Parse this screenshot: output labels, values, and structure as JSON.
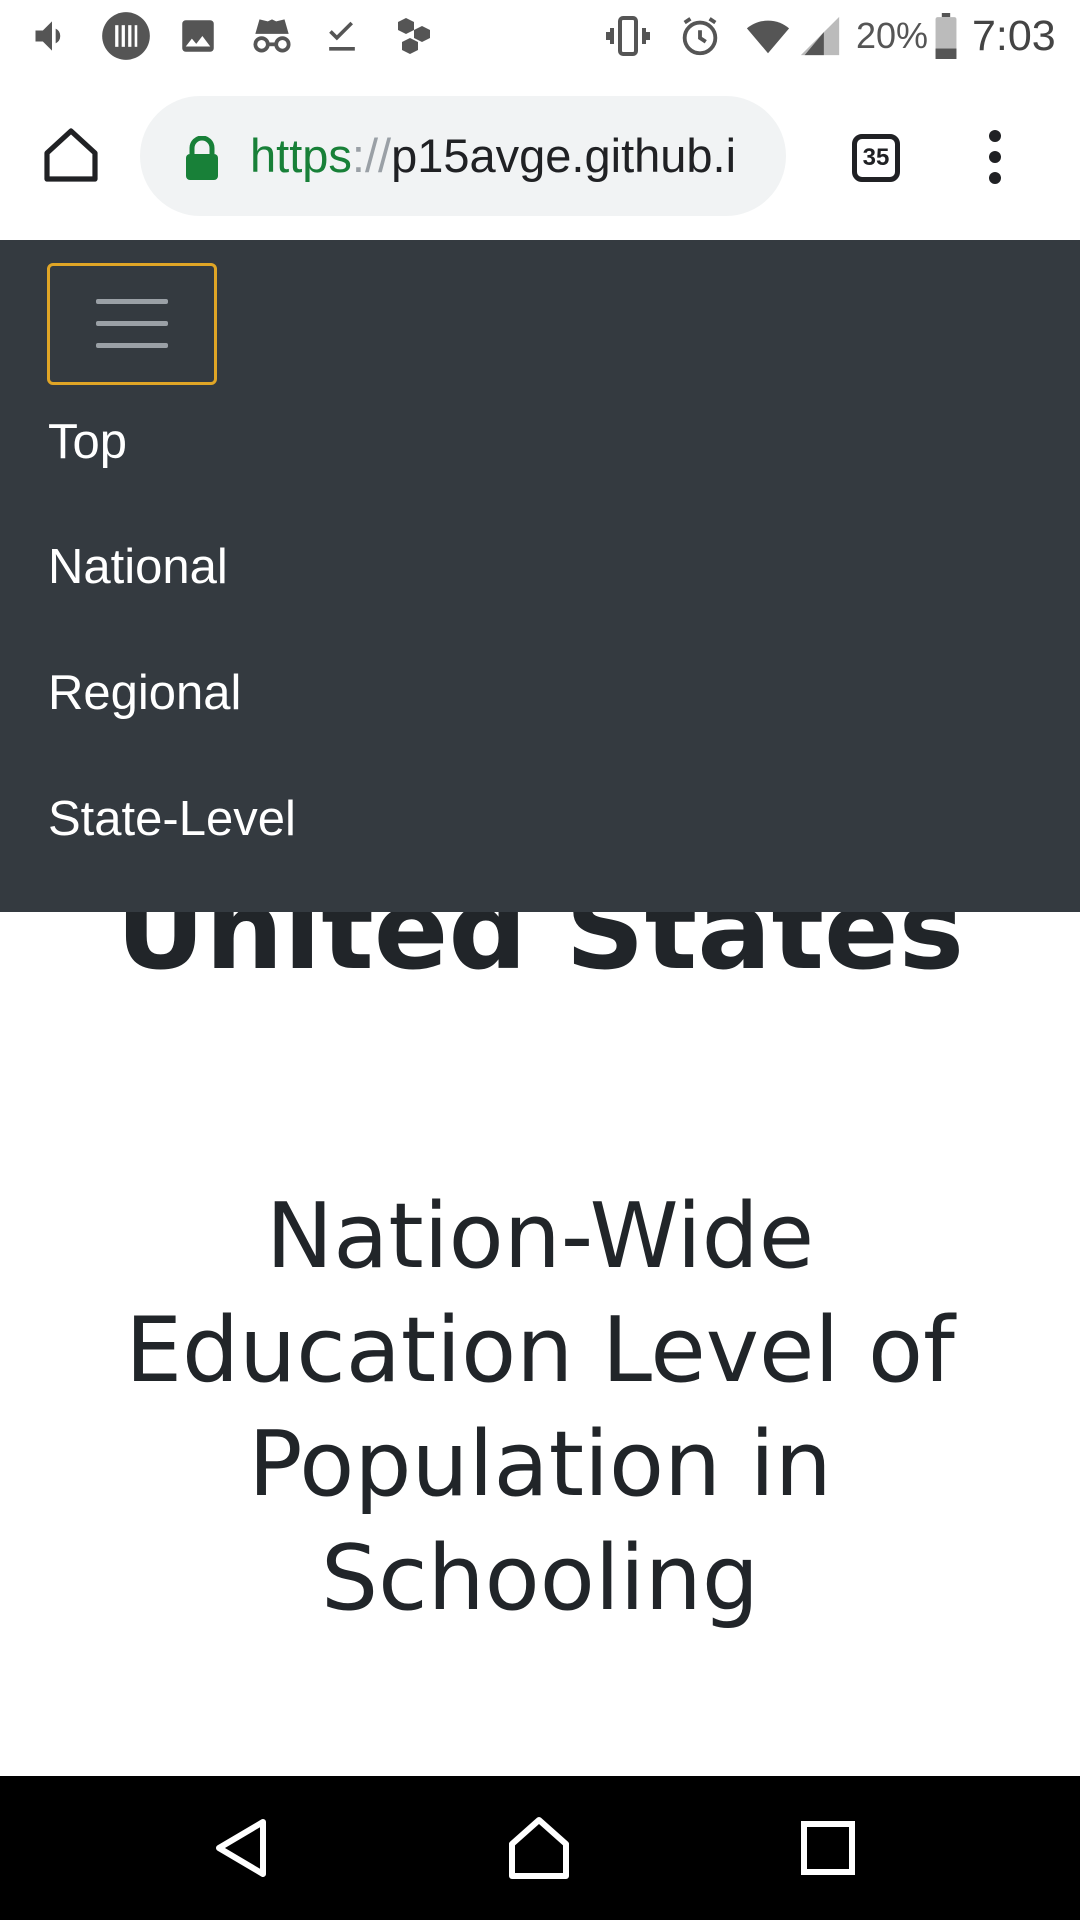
{
  "status_bar": {
    "battery_percent": "20%",
    "time": "7:03",
    "icons": [
      "volume-icon",
      "barcode-icon",
      "image-icon",
      "incognito-icon",
      "download-done-icon",
      "hexagons-icon",
      "vibrate-icon",
      "alarm-icon",
      "wifi-icon",
      "signal-icon",
      "battery-icon"
    ]
  },
  "browser": {
    "url_scheme": "https",
    "url_separator": "://",
    "url_host": "p15avge.github.i",
    "tab_count": "35",
    "accent_color": "#188038"
  },
  "navbar": {
    "background_color": "#343a40",
    "toggler_border_color": "#e0a526",
    "items": [
      {
        "label": "Top"
      },
      {
        "label": "National"
      },
      {
        "label": "Regional"
      },
      {
        "label": "State-Level"
      }
    ]
  },
  "main": {
    "partially_hidden_title": "United States",
    "section_heading": "Nation-Wide Education Level of Population in Schooling"
  }
}
